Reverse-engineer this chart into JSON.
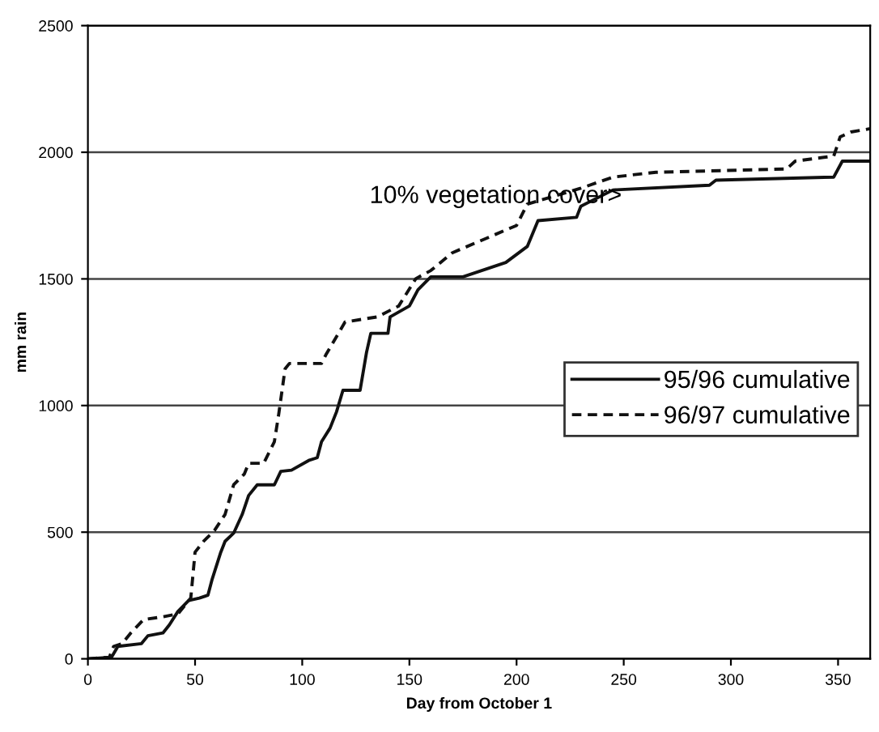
{
  "chart_data": {
    "type": "line",
    "xlabel": "Day from October 1",
    "ylabel": "mm rain",
    "xlim": [
      0,
      365
    ],
    "ylim": [
      0,
      2500
    ],
    "xticks": [
      0,
      50,
      100,
      150,
      200,
      250,
      300,
      350
    ],
    "yticks": [
      0,
      500,
      1000,
      1500,
      2000,
      2500
    ],
    "grid": "y",
    "legend": "right",
    "marker": "none",
    "annotations": [
      "10% vegetation cover>"
    ],
    "series": [
      {
        "name": "95/96 cumulative",
        "color": "#111111",
        "line_style": "solid",
        "x": [
          0,
          11,
          14,
          25,
          28,
          35,
          38,
          42,
          47,
          52,
          56,
          58,
          62,
          64,
          68,
          72,
          75,
          79,
          87,
          90,
          95,
          103,
          107,
          109,
          113,
          116,
          119,
          127,
          130,
          132,
          140,
          141,
          150,
          154,
          160,
          175,
          195,
          205,
          210,
          228,
          230,
          245,
          290,
          293,
          348,
          352,
          365
        ],
        "values": [
          0,
          6,
          49,
          60,
          91,
          102,
          134,
          187,
          230,
          240,
          251,
          315,
          421,
          464,
          496,
          570,
          645,
          687,
          687,
          740,
          745,
          783,
          794,
          857,
          911,
          975,
          1060,
          1060,
          1210,
          1285,
          1285,
          1350,
          1393,
          1457,
          1508,
          1508,
          1565,
          1628,
          1730,
          1743,
          1787,
          1851,
          1870,
          1890,
          1902,
          1965,
          1965
        ]
      },
      {
        "name": "96/97 cumulative",
        "color": "#111111",
        "line_style": "dashed",
        "x": [
          0,
          10,
          12,
          16,
          20,
          26,
          35,
          42,
          46,
          48,
          50,
          54,
          59,
          64,
          68,
          73,
          75,
          82,
          87,
          89,
          92,
          94,
          109,
          111,
          120,
          135,
          145,
          153,
          160,
          170,
          200,
          205,
          230,
          245,
          265,
          326,
          330,
          348,
          351,
          356,
          365
        ],
        "values": [
          0,
          6,
          49,
          60,
          102,
          155,
          166,
          177,
          219,
          240,
          421,
          464,
          506,
          570,
          687,
          730,
          772,
          772,
          857,
          964,
          1145,
          1166,
          1166,
          1200,
          1330,
          1350,
          1393,
          1501,
          1533,
          1603,
          1711,
          1795,
          1858,
          1902,
          1921,
          1934,
          1965,
          1985,
          2061,
          2080,
          2093
        ]
      }
    ]
  }
}
